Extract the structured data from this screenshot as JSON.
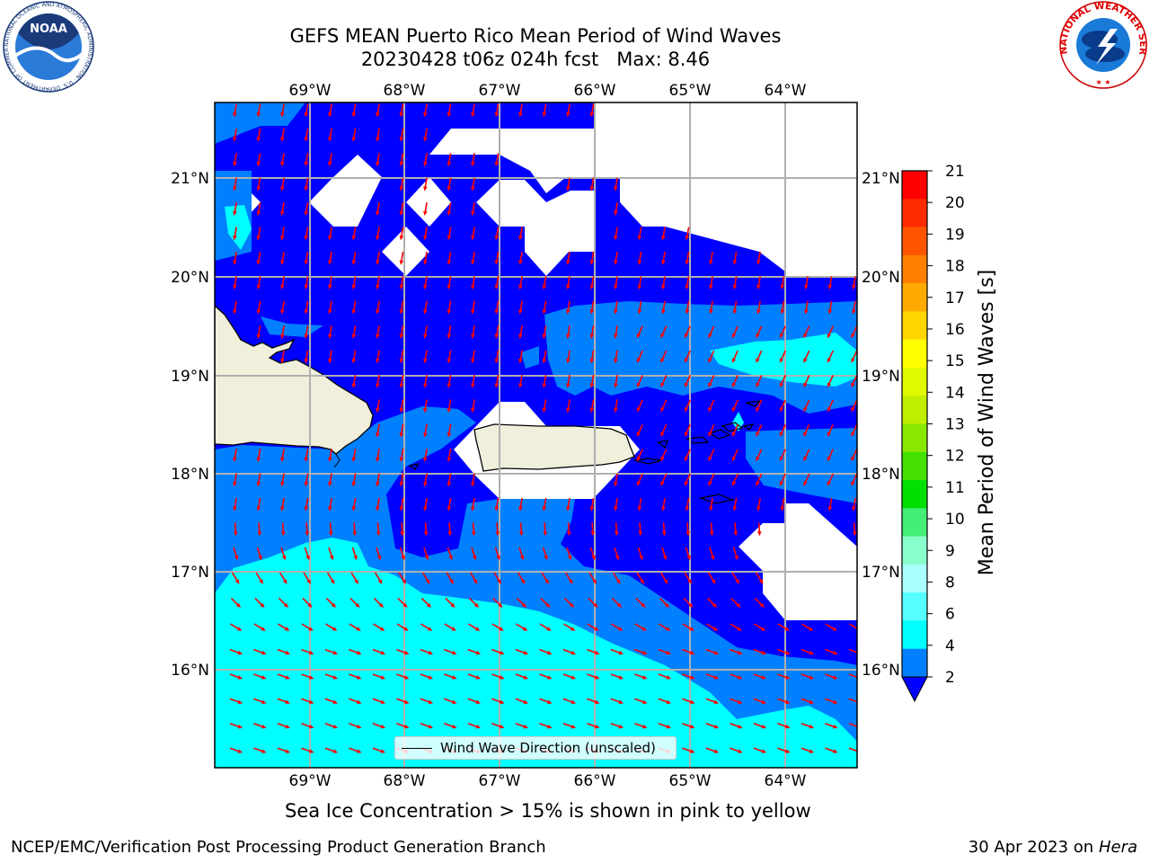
{
  "title": {
    "line1": "GEFS MEAN Puerto Rico Mean Period of Wind Waves",
    "line2": "20230428 t06z 024h fcst   Max: 8.46"
  },
  "map": {
    "lon_labels": [
      "69°W",
      "68°W",
      "67°W",
      "66°W",
      "65°W",
      "64°W"
    ],
    "lat_labels": [
      "21°N",
      "20°N",
      "19°N",
      "18°N",
      "17°N",
      "16°N"
    ],
    "grid": true,
    "colors": {
      "land": "#efefdc",
      "nodata": "#ffffff",
      "band_2_4": "#0000ff",
      "band_4_6": "#0080ff",
      "band_6_8": "#00ffff",
      "arrow": "#ff0000",
      "grid": "#b0b0b0"
    }
  },
  "legend": {
    "label": "Wind Wave Direction (unscaled)"
  },
  "colorbar": {
    "label": "Mean Period of Wind Waves [s]",
    "ticks": [
      "21",
      "20",
      "19",
      "18",
      "17",
      "16",
      "15",
      "14",
      "13",
      "12",
      "11",
      "10",
      "9",
      "8",
      "6",
      "4",
      "2"
    ],
    "colors": [
      "#ff0000",
      "#ff2a00",
      "#ff5500",
      "#ff8000",
      "#ffaa00",
      "#ffd500",
      "#ffff00",
      "#e0f800",
      "#c0ee00",
      "#88e800",
      "#44e000",
      "#00e000",
      "#44ee77",
      "#88ffcc",
      "#aaffff",
      "#55ffff",
      "#00ffff",
      "#0080ff"
    ],
    "extend_color": "#0000ff"
  },
  "caption": "Sea Ice Concentration > 15% is shown in pink to yellow",
  "footer": {
    "left": "NCEP/EMC/Verification Post Processing Product Generation Branch",
    "date": "30 Apr 2023 on ",
    "host": "Hera"
  },
  "logos": {
    "noaa": "NOAA",
    "noaa_ring": "NATIONAL OCEANIC AND ATMOSPHERIC ADMINISTRATION · U.S. DEPARTMENT OF COMMERCE ·",
    "nws_ring": "NATIONAL WEATHER SERVICE"
  }
}
